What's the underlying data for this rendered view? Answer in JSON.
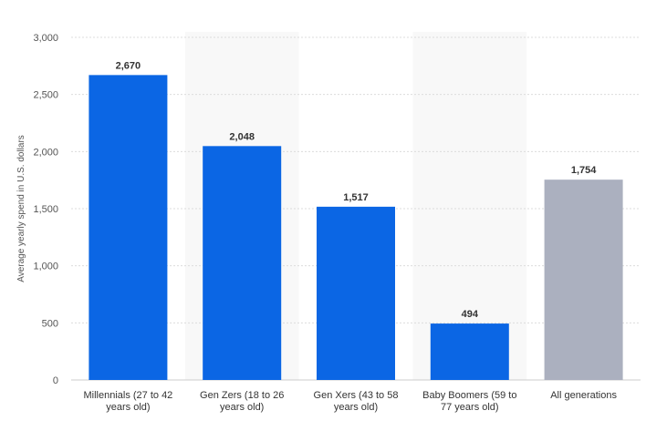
{
  "chart_data": {
    "type": "bar",
    "categories": [
      [
        "Millennials (27 to 42",
        "years old)"
      ],
      [
        "Gen Zers (18 to 26",
        "years old)"
      ],
      [
        "Gen Xers (43 to 58",
        "years old)"
      ],
      [
        "Baby Boomers (59 to",
        "77 years old)"
      ],
      [
        "All generations"
      ]
    ],
    "values": [
      2670,
      2048,
      1517,
      494,
      1754
    ],
    "value_labels": [
      "2,670",
      "2,048",
      "1,517",
      "494",
      "1,754"
    ],
    "bar_colors": [
      "#0b66e4",
      "#0b66e4",
      "#0b66e4",
      "#0b66e4",
      "#abb0bf"
    ],
    "ylabel": "Average yearly spend in U.S. dollars",
    "ylim": [
      0,
      3000
    ],
    "yticks": [
      0,
      500,
      1000,
      1500,
      2000,
      2500,
      3000
    ],
    "ytick_labels": [
      "0",
      "500",
      "1,000",
      "1,500",
      "2,000",
      "2,500",
      "3,000"
    ],
    "grid": true,
    "band_color": "#f8f8f8"
  }
}
